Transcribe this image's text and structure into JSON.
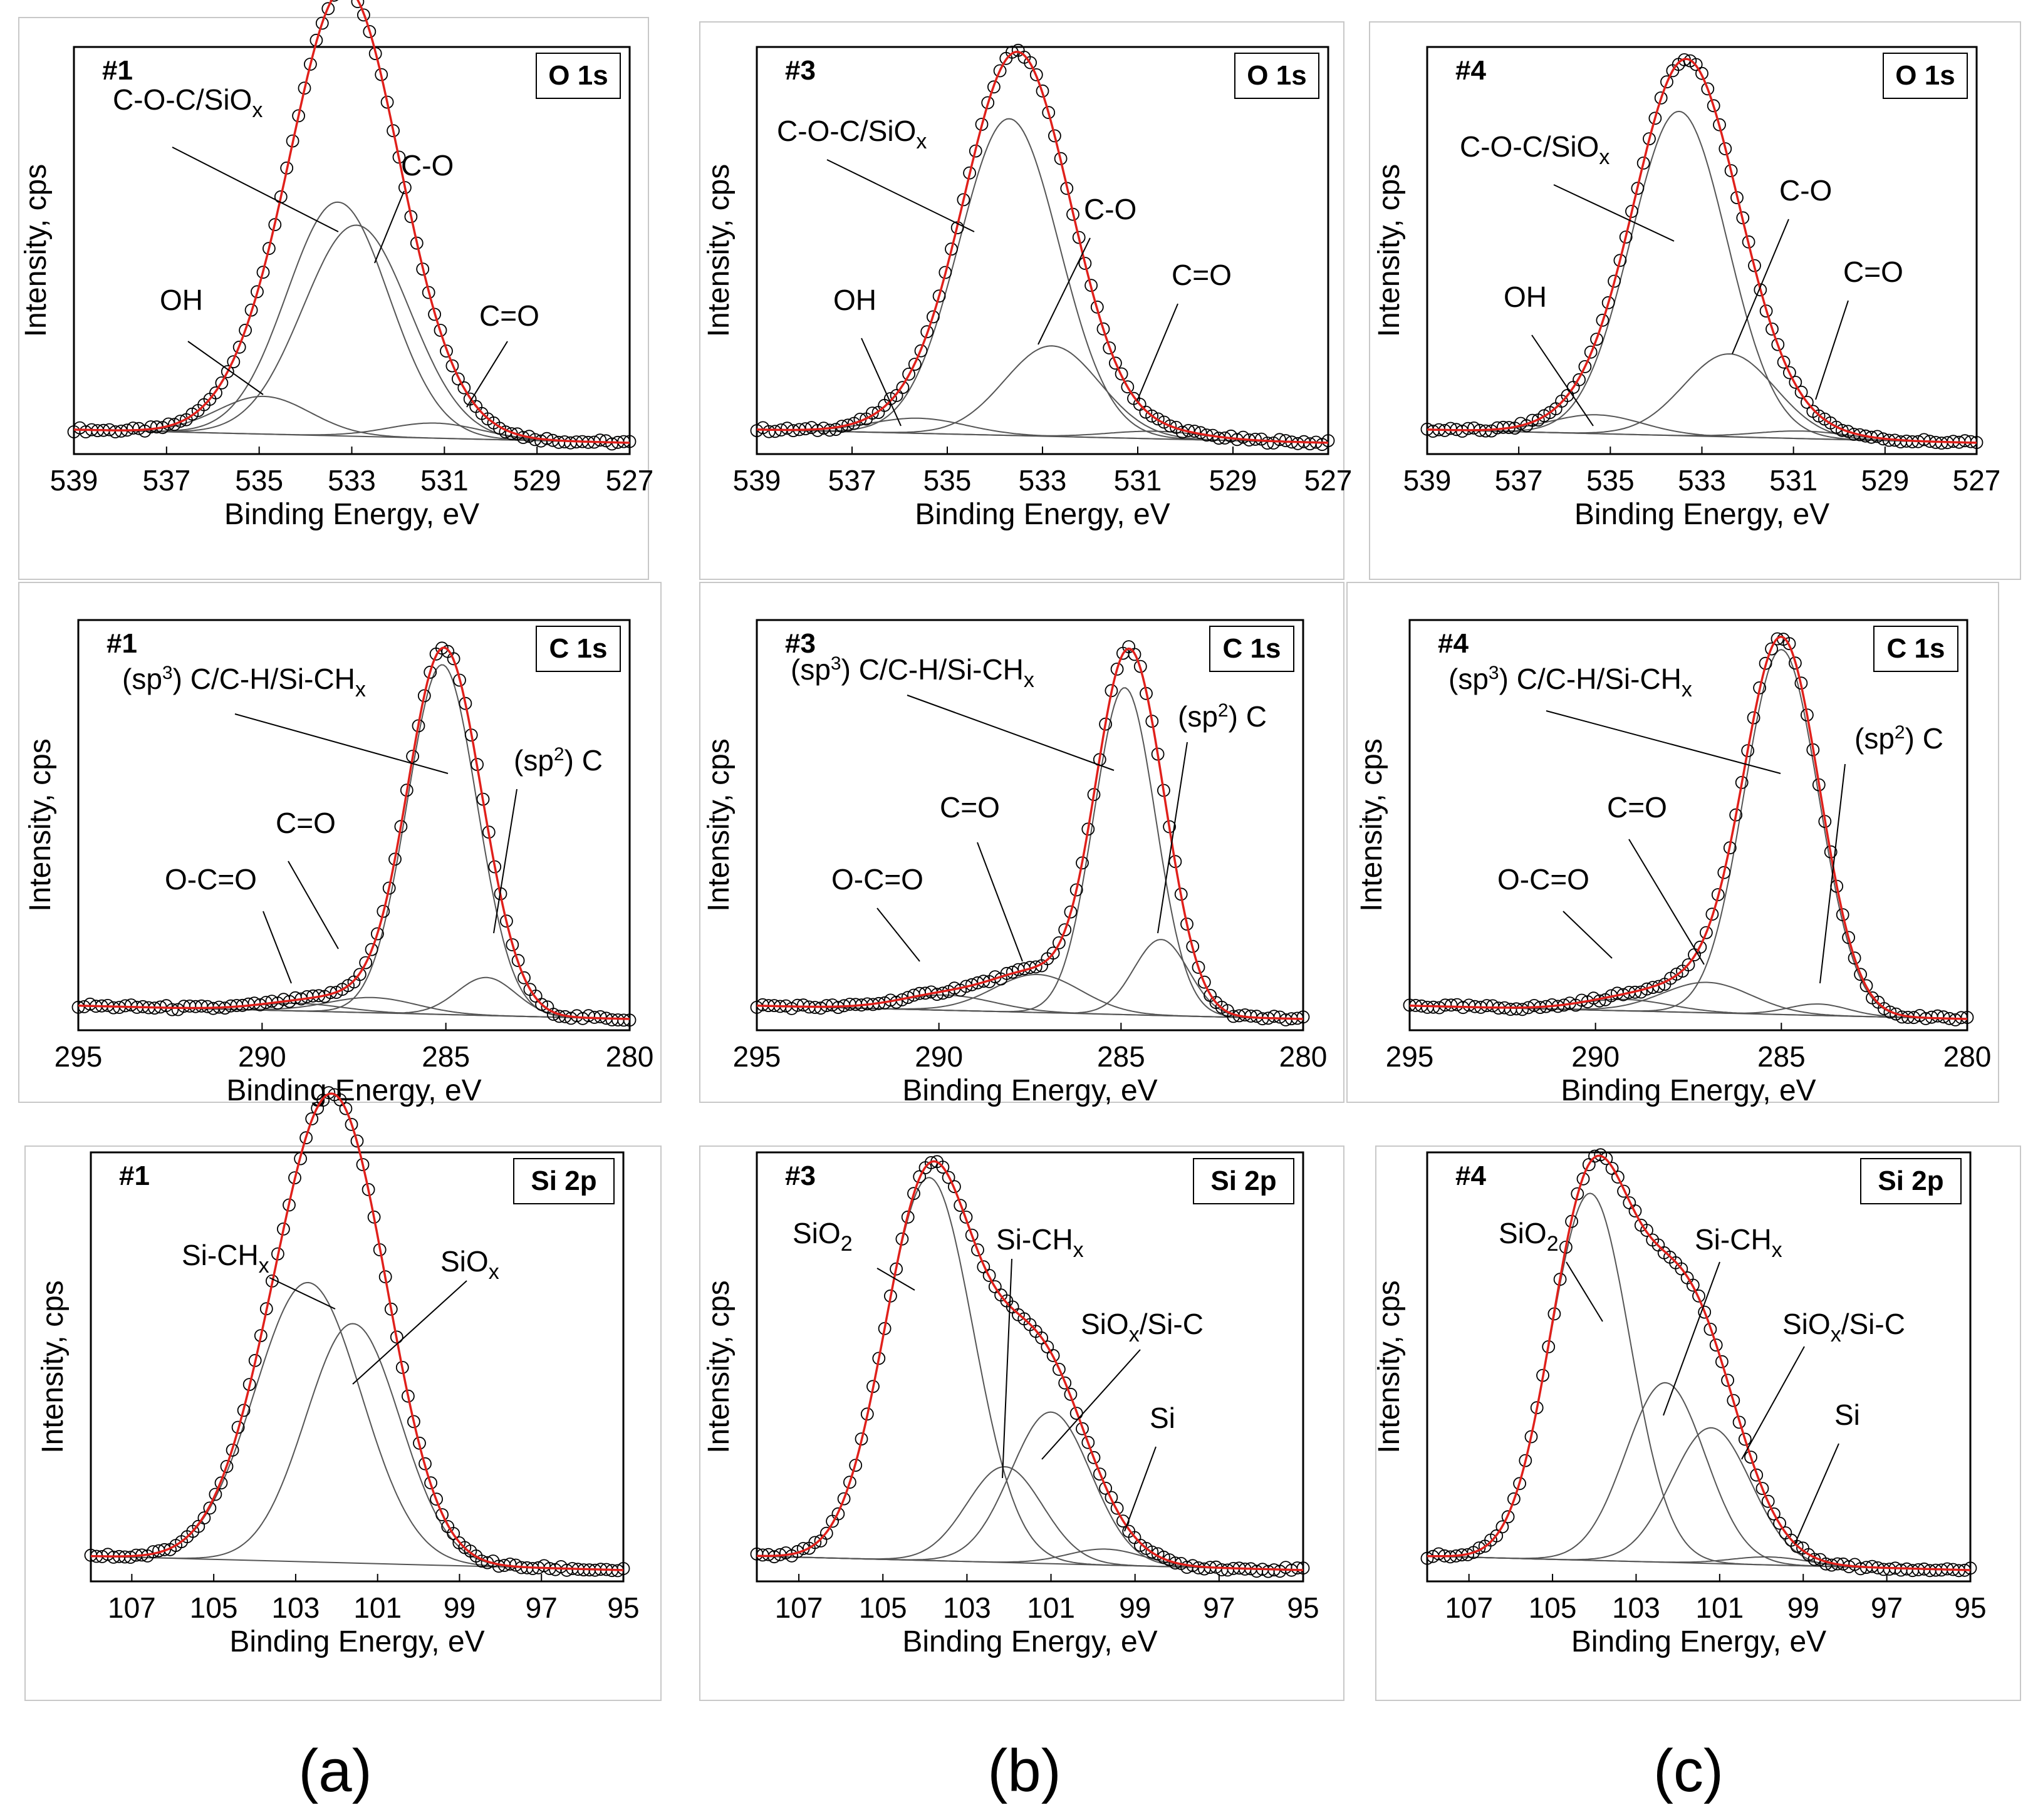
{
  "chart_data": [
    {
      "id": "a-O1s",
      "type": "line",
      "core_level": "O 1s",
      "sample": "#1",
      "xlabel": "Binding Energy, eV",
      "ylabel": "Intensity, cps",
      "xlim": [
        539,
        527
      ],
      "xticks": [
        539,
        537,
        535,
        533,
        531,
        529,
        527
      ],
      "components": [
        {
          "label": "C-O-C/SiOx",
          "center": 533.3,
          "amp": 0.62,
          "sigma": 1.1
        },
        {
          "label": "C-O",
          "center": 532.9,
          "amp": 0.56,
          "sigma": 1.15
        },
        {
          "label": "OH",
          "center": 534.9,
          "amp": 0.1,
          "sigma": 1.0
        },
        {
          "label": "C=O",
          "center": 531.2,
          "amp": 0.04,
          "sigma": 1.0
        }
      ],
      "annotations": [
        "C-O-C/SiOx",
        "C-O",
        "OH",
        "C=O"
      ]
    },
    {
      "id": "b-O1s",
      "type": "line",
      "core_level": "O 1s",
      "sample": "#3",
      "xlabel": "Binding Energy, eV",
      "ylabel": "Intensity, cps",
      "xlim": [
        539,
        527
      ],
      "xticks": [
        539,
        537,
        535,
        533,
        531,
        529,
        527
      ],
      "components": [
        {
          "label": "C-O-C/SiOx",
          "center": 533.7,
          "amp": 0.84,
          "sigma": 1.05
        },
        {
          "label": "C-O",
          "center": 532.8,
          "amp": 0.24,
          "sigma": 1.0
        },
        {
          "label": "OH",
          "center": 535.6,
          "amp": 0.04,
          "sigma": 1.0
        },
        {
          "label": "C=O",
          "center": 530.6,
          "amp": 0.02,
          "sigma": 1.0
        }
      ],
      "annotations": [
        "C-O-C/SiOx",
        "C-O",
        "OH",
        "C=O"
      ]
    },
    {
      "id": "c-O1s",
      "type": "line",
      "core_level": "O 1s",
      "sample": "#4",
      "xlabel": "Binding Energy, eV",
      "ylabel": "Intensity, cps",
      "xlim": [
        539,
        527
      ],
      "xticks": [
        539,
        537,
        535,
        533,
        531,
        529,
        527
      ],
      "components": [
        {
          "label": "C-O-C/SiOx",
          "center": 533.5,
          "amp": 0.86,
          "sigma": 1.05
        },
        {
          "label": "C-O",
          "center": 532.4,
          "amp": 0.22,
          "sigma": 1.0
        },
        {
          "label": "OH",
          "center": 535.3,
          "amp": 0.05,
          "sigma": 1.0
        },
        {
          "label": "C=O",
          "center": 530.8,
          "amp": 0.02,
          "sigma": 1.0
        }
      ],
      "annotations": [
        "C-O-C/SiOx",
        "C-O",
        "OH",
        "C=O"
      ]
    },
    {
      "id": "a-C1s",
      "type": "line",
      "core_level": "C 1s",
      "sample": "#1",
      "xlabel": "Binding Energy, eV",
      "ylabel": "Intensity, cps",
      "xlim": [
        295,
        280
      ],
      "xticks": [
        295,
        290,
        285,
        280
      ],
      "components": [
        {
          "label": "(sp3) C/C-H/Si-CHx",
          "center": 285.1,
          "amp": 0.92,
          "sigma": 0.95
        },
        {
          "label": "(sp2) C",
          "center": 283.9,
          "amp": 0.1,
          "sigma": 0.8
        },
        {
          "label": "C=O",
          "center": 287.0,
          "amp": 0.04,
          "sigma": 1.2
        },
        {
          "label": "O-C=O",
          "center": 289.0,
          "amp": 0.02,
          "sigma": 1.2
        }
      ],
      "annotations": [
        "(sp3) C/C-H/Si-CHx",
        "(sp2) C",
        "C=O",
        "O-C=O"
      ]
    },
    {
      "id": "b-C1s",
      "type": "line",
      "core_level": "C 1s",
      "sample": "#3",
      "xlabel": "Binding Energy, eV",
      "ylabel": "Intensity, cps",
      "xlim": [
        295,
        280
      ],
      "xticks": [
        295,
        290,
        285,
        280
      ],
      "components": [
        {
          "label": "(sp3) C/C-H/Si-CHx",
          "center": 284.9,
          "amp": 0.86,
          "sigma": 0.85
        },
        {
          "label": "(sp2) C",
          "center": 283.9,
          "amp": 0.2,
          "sigma": 0.75
        },
        {
          "label": "C=O",
          "center": 287.3,
          "amp": 0.1,
          "sigma": 1.2
        },
        {
          "label": "O-C=O",
          "center": 289.8,
          "amp": 0.04,
          "sigma": 1.3
        }
      ],
      "annotations": [
        "(sp3) C/C-H/Si-CHx",
        "(sp2) C",
        "C=O",
        "O-C=O"
      ]
    },
    {
      "id": "c-C1s",
      "type": "line",
      "core_level": "C 1s",
      "sample": "#4",
      "xlabel": "Binding Energy, eV",
      "ylabel": "Intensity, cps",
      "xlim": [
        295,
        280
      ],
      "xticks": [
        295,
        290,
        285,
        280
      ],
      "components": [
        {
          "label": "(sp3) C/C-H/Si-CHx",
          "center": 285.0,
          "amp": 0.96,
          "sigma": 1.0
        },
        {
          "label": "(sp2) C",
          "center": 284.0,
          "amp": 0.03,
          "sigma": 0.8
        },
        {
          "label": "C=O",
          "center": 287.0,
          "amp": 0.08,
          "sigma": 1.2
        },
        {
          "label": "O-C=O",
          "center": 289.2,
          "amp": 0.03,
          "sigma": 1.2
        }
      ],
      "annotations": [
        "(sp3) C/C-H/Si-CHx",
        "(sp2) C",
        "C=O",
        "O-C=O"
      ]
    },
    {
      "id": "a-Si2p",
      "type": "line",
      "core_level": "Si 2p",
      "sample": "#1",
      "xlabel": "Binding Energy, eV",
      "ylabel": "Intensity, cps",
      "xlim": [
        108,
        95
      ],
      "xticks": [
        107,
        105,
        103,
        101,
        99,
        97,
        95
      ],
      "components": [
        {
          "label": "Si-CHx",
          "center": 102.7,
          "amp": 0.7,
          "sigma": 1.3
        },
        {
          "label": "SiOx",
          "center": 101.6,
          "amp": 0.6,
          "sigma": 1.15
        }
      ],
      "annotations": [
        "Si-CHx",
        "SiOx"
      ]
    },
    {
      "id": "b-Si2p",
      "type": "line",
      "core_level": "Si 2p",
      "sample": "#3",
      "xlabel": "Binding Energy, eV",
      "ylabel": "Intensity, cps",
      "xlim": [
        108,
        95
      ],
      "xticks": [
        107,
        105,
        103,
        101,
        99,
        97,
        95
      ],
      "components": [
        {
          "label": "SiO2",
          "center": 103.9,
          "amp": 0.96,
          "sigma": 1.05
        },
        {
          "label": "Si-CHx",
          "center": 102.1,
          "amp": 0.24,
          "sigma": 0.9
        },
        {
          "label": "SiOx/Si-C",
          "center": 101.0,
          "amp": 0.38,
          "sigma": 0.95
        },
        {
          "label": "Si",
          "center": 99.7,
          "amp": 0.04,
          "sigma": 0.9
        }
      ],
      "annotations": [
        "SiO2",
        "Si-CHx",
        "SiOx/Si-C",
        "Si"
      ]
    },
    {
      "id": "c-Si2p",
      "type": "line",
      "core_level": "Si 2p",
      "sample": "#4",
      "xlabel": "Binding Energy, eV",
      "ylabel": "Intensity, cps",
      "xlim": [
        108,
        95
      ],
      "xticks": [
        107,
        105,
        103,
        101,
        99,
        97,
        95
      ],
      "components": [
        {
          "label": "SiO2",
          "center": 104.1,
          "amp": 0.92,
          "sigma": 0.95
        },
        {
          "label": "Si-CHx",
          "center": 102.3,
          "amp": 0.45,
          "sigma": 0.95
        },
        {
          "label": "SiOx/Si-C",
          "center": 101.2,
          "amp": 0.34,
          "sigma": 0.95
        },
        {
          "label": "Si",
          "center": 99.8,
          "amp": 0.02,
          "sigma": 0.9
        }
      ],
      "annotations": [
        "SiO2",
        "Si-CHx",
        "SiOx/Si-C",
        "Si"
      ]
    }
  ],
  "columns": [
    "(a)",
    "(b)",
    "(c)"
  ],
  "colors": {
    "fit": "#e0201b",
    "components": "#555555",
    "points": "#000000",
    "frame": "#c8c8c8"
  }
}
